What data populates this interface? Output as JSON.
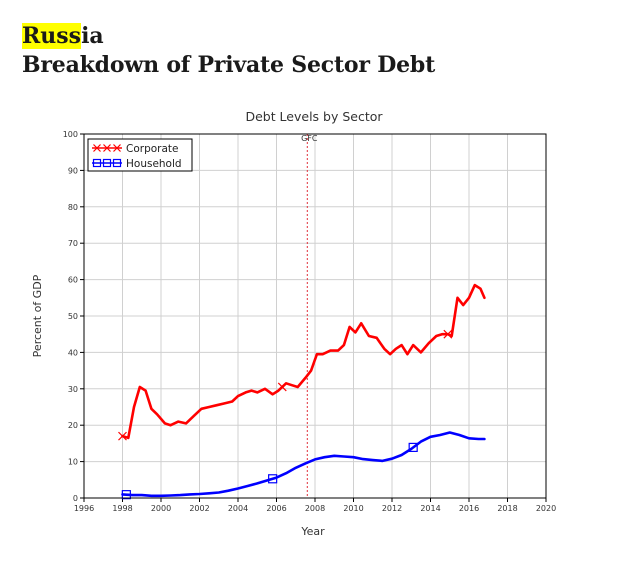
{
  "header": {
    "country_highlight": "Russ",
    "country_rest": "ia",
    "subtitle": "Breakdown of Private Sector Debt"
  },
  "chart_data": {
    "type": "line",
    "title": "Debt Levels by Sector",
    "xlabel": "Year",
    "ylabel": "Percent of GDP",
    "xlim": [
      1996,
      2020
    ],
    "ylim": [
      0,
      100
    ],
    "xticks": [
      1996,
      1998,
      2000,
      2002,
      2004,
      2006,
      2008,
      2010,
      2012,
      2014,
      2016,
      2018,
      2020
    ],
    "yticks": [
      0,
      10,
      20,
      30,
      40,
      50,
      60,
      70,
      80,
      90,
      100
    ],
    "grid": true,
    "legend_position": "top-left",
    "annotation": {
      "label": "GFC",
      "x": 2007.6,
      "style": "dashed-vertical-line"
    },
    "series": [
      {
        "name": "Corporate",
        "color": "#ff0000",
        "marker": "x",
        "marker_x": [
          1998.0,
          2006.3,
          2014.9
        ],
        "x": [
          1998.0,
          1998.3,
          1998.6,
          1998.9,
          1999.2,
          1999.5,
          1999.8,
          2000.2,
          2000.5,
          2000.9,
          2001.3,
          2001.7,
          2002.1,
          2002.5,
          2002.9,
          2003.3,
          2003.7,
          2004.0,
          2004.4,
          2004.7,
          2005.0,
          2005.4,
          2005.8,
          2006.1,
          2006.5,
          2006.8,
          2007.1,
          2007.5,
          2007.8,
          2008.1,
          2008.4,
          2008.8,
          2009.2,
          2009.5,
          2009.8,
          2010.1,
          2010.4,
          2010.8,
          2011.2,
          2011.6,
          2011.9,
          2012.2,
          2012.5,
          2012.8,
          2013.1,
          2013.5,
          2013.9,
          2014.3,
          2014.6,
          2014.9,
          2015.1,
          2015.4,
          2015.7,
          2016.0,
          2016.3,
          2016.6,
          2016.8
        ],
        "values": [
          17,
          16.5,
          25,
          30.5,
          29.5,
          24.5,
          23,
          20.5,
          20,
          21,
          20.5,
          22.5,
          24.5,
          25,
          25.5,
          26,
          26.5,
          28,
          29,
          29.5,
          29,
          30,
          28.5,
          29.5,
          31.5,
          31,
          30.5,
          33,
          35,
          39.5,
          39.5,
          40.5,
          40.5,
          42,
          47,
          45.5,
          48,
          44.5,
          44,
          41,
          39.5,
          41,
          42,
          39.5,
          42,
          40,
          42.5,
          44.5,
          45,
          45,
          44.5,
          55,
          53,
          55,
          58.5,
          57.5,
          55
        ]
      },
      {
        "name": "Household",
        "color": "#0000ff",
        "marker": "square",
        "marker_x": [
          1998.2,
          2005.8,
          2013.1
        ],
        "x": [
          1998.0,
          1998.5,
          1999.0,
          1999.5,
          2000.0,
          2000.5,
          2001.0,
          2001.5,
          2002.0,
          2002.5,
          2003.0,
          2003.5,
          2004.0,
          2004.5,
          2005.0,
          2005.5,
          2006.0,
          2006.5,
          2007.0,
          2007.5,
          2008.0,
          2008.5,
          2009.0,
          2009.5,
          2010.0,
          2010.5,
          2011.0,
          2011.5,
          2012.0,
          2012.5,
          2013.0,
          2013.5,
          2014.0,
          2014.5,
          2015.0,
          2015.5,
          2016.0,
          2016.5,
          2016.8
        ],
        "values": [
          1,
          0.8,
          0.8,
          0.6,
          0.6,
          0.7,
          0.8,
          1.0,
          1.1,
          1.3,
          1.5,
          2.0,
          2.6,
          3.3,
          4.0,
          4.8,
          5.6,
          6.8,
          8.3,
          9.5,
          10.6,
          11.2,
          11.6,
          11.4,
          11.2,
          10.7,
          10.4,
          10.2,
          10.8,
          11.8,
          13.5,
          15.5,
          16.8,
          17.3,
          18.0,
          17.3,
          16.4,
          16.2,
          16.2
        ]
      }
    ]
  }
}
